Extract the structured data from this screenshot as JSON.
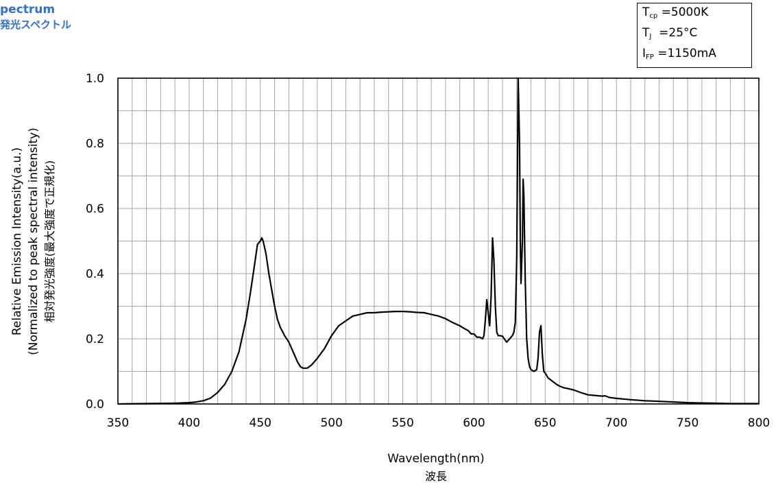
{
  "header": {
    "line1": "pectrum",
    "line2": "発光スペクトル"
  },
  "conditions": [
    {
      "sym": "T",
      "sub": "cp",
      "val": "=5000K"
    },
    {
      "sym": "T",
      "sub": "J",
      "val": "=25°C"
    },
    {
      "sym": "I",
      "sub": "FP",
      "val": "=1150mA"
    }
  ],
  "colors": {
    "header": "#2f6fd6",
    "line": "#000000",
    "grid": "#a6a6a6"
  },
  "chart_data": {
    "type": "line",
    "xlabel": "Wavelength(nm)",
    "xlabel2": "波長",
    "ylabel": "Relative Emission Intensity(a.u.)",
    "ylabel2": "(Normalized to peak spectral intensity)",
    "ylabel3": "相対発光強度(最大強度で正規化)",
    "xlim": [
      350,
      800
    ],
    "ylim": [
      0,
      1.0
    ],
    "x_ticks": [
      350,
      400,
      450,
      500,
      550,
      600,
      650,
      700,
      750,
      800
    ],
    "y_ticks": [
      "0.0",
      "0.2",
      "0.4",
      "0.6",
      "0.8",
      "1.0"
    ],
    "x_minor_step": 10,
    "y_minor_step": 0.1,
    "grid": true,
    "series": [
      {
        "x": [
          350,
          390,
          400,
          405,
          410,
          415,
          420,
          425,
          430,
          435,
          440,
          443,
          446,
          448,
          450,
          451,
          452,
          454,
          456,
          458,
          460,
          462,
          464,
          467,
          470,
          473,
          476,
          478,
          480,
          483,
          486,
          490,
          495,
          500,
          505,
          510,
          515,
          520,
          525,
          530,
          535,
          540,
          545,
          550,
          555,
          560,
          565,
          570,
          575,
          580,
          585,
          590,
          593,
          596,
          598,
          600,
          602,
          604,
          606,
          607,
          608,
          609,
          610,
          611,
          612,
          613,
          614,
          615,
          616,
          617,
          618,
          620,
          622,
          623,
          625,
          627,
          628,
          629,
          630,
          631,
          632,
          632.5,
          633,
          634,
          634.5,
          635,
          636,
          637,
          638,
          639,
          640,
          642,
          644,
          645,
          646,
          647,
          648,
          649,
          650,
          652,
          655,
          658,
          660,
          663,
          665,
          668,
          670,
          675,
          680,
          685,
          690,
          692,
          695,
          700,
          710,
          720,
          730,
          740,
          750,
          760,
          770,
          780,
          790,
          800
        ],
        "y": [
          0,
          0.002,
          0.004,
          0.006,
          0.01,
          0.018,
          0.035,
          0.06,
          0.1,
          0.16,
          0.26,
          0.34,
          0.43,
          0.49,
          0.5,
          0.51,
          0.5,
          0.46,
          0.4,
          0.35,
          0.3,
          0.26,
          0.235,
          0.21,
          0.19,
          0.16,
          0.13,
          0.115,
          0.11,
          0.11,
          0.12,
          0.14,
          0.17,
          0.21,
          0.24,
          0.255,
          0.27,
          0.275,
          0.28,
          0.28,
          0.282,
          0.283,
          0.284,
          0.284,
          0.283,
          0.281,
          0.28,
          0.275,
          0.27,
          0.262,
          0.25,
          0.24,
          0.232,
          0.225,
          0.215,
          0.215,
          0.205,
          0.205,
          0.2,
          0.21,
          0.26,
          0.32,
          0.28,
          0.24,
          0.33,
          0.51,
          0.44,
          0.3,
          0.22,
          0.21,
          0.21,
          0.208,
          0.195,
          0.19,
          0.2,
          0.21,
          0.22,
          0.25,
          0.45,
          1.0,
          0.8,
          0.5,
          0.37,
          0.5,
          0.69,
          0.64,
          0.38,
          0.2,
          0.14,
          0.115,
          0.105,
          0.1,
          0.105,
          0.14,
          0.22,
          0.24,
          0.15,
          0.1,
          0.095,
          0.08,
          0.07,
          0.06,
          0.055,
          0.05,
          0.048,
          0.045,
          0.043,
          0.035,
          0.028,
          0.026,
          0.024,
          0.025,
          0.02,
          0.017,
          0.013,
          0.01,
          0.008,
          0.006,
          0.004,
          0.003,
          0.002,
          0.001,
          0.001,
          0.001
        ]
      }
    ]
  }
}
